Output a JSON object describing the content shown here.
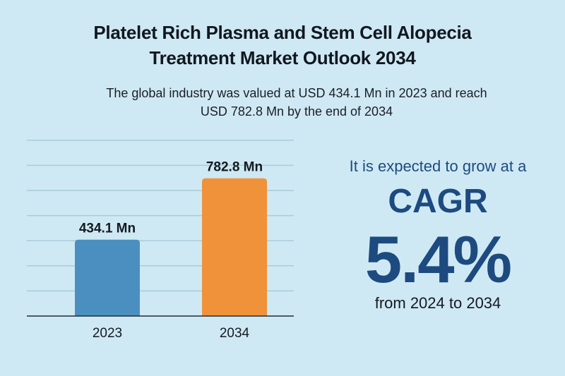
{
  "header": {
    "title_line1": "Platelet Rich Plasma and Stem Cell Alopecia",
    "title_line2": "Treatment Market Outlook 2034",
    "subtitle_line1": "The global industry was valued at USD 434.1 Mn in 2023 and reach",
    "subtitle_line2": "USD 782.8 Mn by the end of 2034"
  },
  "cagr_panel": {
    "intro": "It is expected to grow at a",
    "label": "CAGR",
    "value": "5.4%",
    "period": "from 2024 to 2034",
    "color": "#1d4b80"
  },
  "chart_data": {
    "type": "bar",
    "title": "",
    "xlabel": "",
    "ylabel": "",
    "categories": [
      "2023",
      "2034"
    ],
    "values": [
      434.1,
      782.8
    ],
    "data_labels": [
      "434.1 Mn",
      "782.8 Mn"
    ],
    "unit": "USD Mn",
    "colors": [
      "#4a8fc0",
      "#f0923a"
    ],
    "ylim": [
      0,
      1000
    ],
    "grid": true,
    "gridline_count": 7
  }
}
